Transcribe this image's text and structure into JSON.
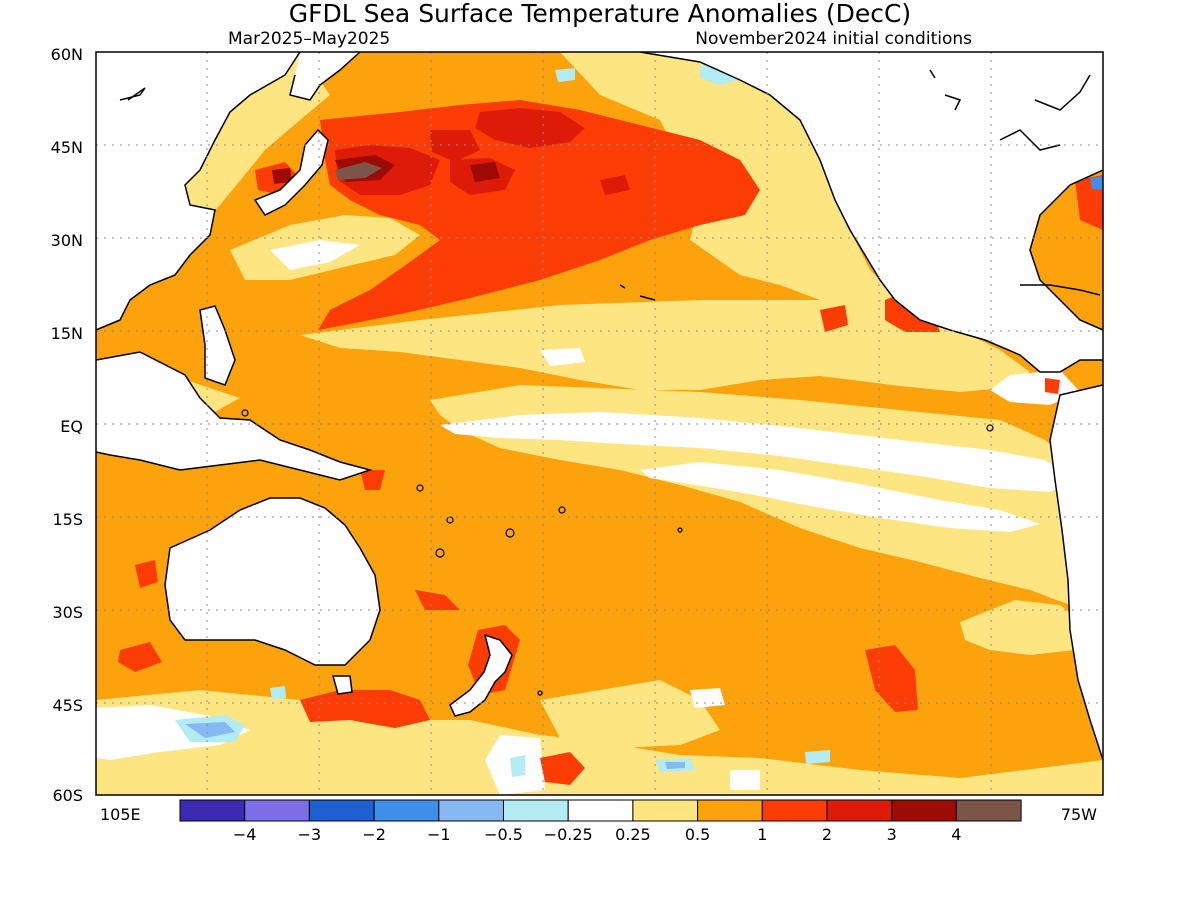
{
  "title": "GFDL Sea Surface Temperature Anomalies (DecC)",
  "subtitle_left": "Mar2025–May2025",
  "subtitle_right": "November2024 initial conditions",
  "map": {
    "lat_labels": [
      "60N",
      "45N",
      "30N",
      "15N",
      "EQ",
      "15S",
      "30S",
      "45S",
      "60S"
    ],
    "lon_label_left": "105E",
    "lon_label_right": "75W",
    "grid": true
  },
  "legend": {
    "colors": [
      "#3b2bb3",
      "#7b6ee8",
      "#1f5fd1",
      "#3f8fe8",
      "#86b8f2",
      "#b3ecf2",
      "#ffffff",
      "#fde582",
      "#fba20c",
      "#fb3d05",
      "#dd1b08",
      "#9e0b05",
      "#7a5548"
    ],
    "labels": [
      "−4",
      "−3",
      "−2",
      "−1",
      "−0.5",
      "−0.25",
      "0.25",
      "0.5",
      "1",
      "2",
      "3",
      "4"
    ]
  },
  "palette": {
    "land": "#ffffff",
    "coast": "#000000",
    "pale": "#fde582",
    "orange": "#fba20c",
    "red": "#fb3d05",
    "darkred": "#dd1b08",
    "maroon": "#9e0b05",
    "brown": "#7a5548",
    "lightblue": "#b3ecf2",
    "blue": "#86b8f2",
    "midblue": "#3f8fe8"
  }
}
